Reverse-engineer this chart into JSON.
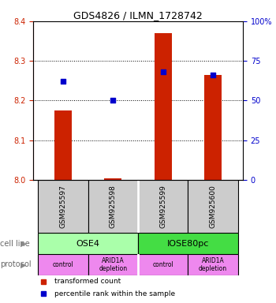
{
  "title": "GDS4826 / ILMN_1728742",
  "samples": [
    "GSM925597",
    "GSM925598",
    "GSM925599",
    "GSM925600"
  ],
  "bar_values": [
    8.175,
    8.005,
    8.37,
    8.265
  ],
  "bar_bottom": 8.0,
  "blue_values": [
    0.62,
    0.5,
    0.68,
    0.66
  ],
  "ylim_left": [
    8.0,
    8.4
  ],
  "ylim_right": [
    0,
    1.0
  ],
  "yticks_left": [
    8.0,
    8.1,
    8.2,
    8.3,
    8.4
  ],
  "yticks_right": [
    0,
    0.25,
    0.5,
    0.75,
    1.0
  ],
  "ytick_labels_right": [
    "0",
    "25",
    "50",
    "75",
    "100%"
  ],
  "bar_color": "#cc2200",
  "blue_color": "#0000cc",
  "cell_line_labels": [
    "OSE4",
    "IOSE80pc"
  ],
  "cell_line_colors": [
    "#aaffaa",
    "#44dd44"
  ],
  "cell_line_spans": [
    [
      0,
      2
    ],
    [
      2,
      4
    ]
  ],
  "protocol_labels": [
    "control",
    "ARID1A\ndepletion",
    "control",
    "ARID1A\ndepletion"
  ],
  "protocol_color": "#ee88ee",
  "legend_red_label": "transformed count",
  "legend_blue_label": "percentile rank within the sample",
  "sample_box_color": "#cccccc",
  "grid_color": "#000000",
  "left_tick_color": "#cc2200",
  "right_tick_color": "#0000cc"
}
